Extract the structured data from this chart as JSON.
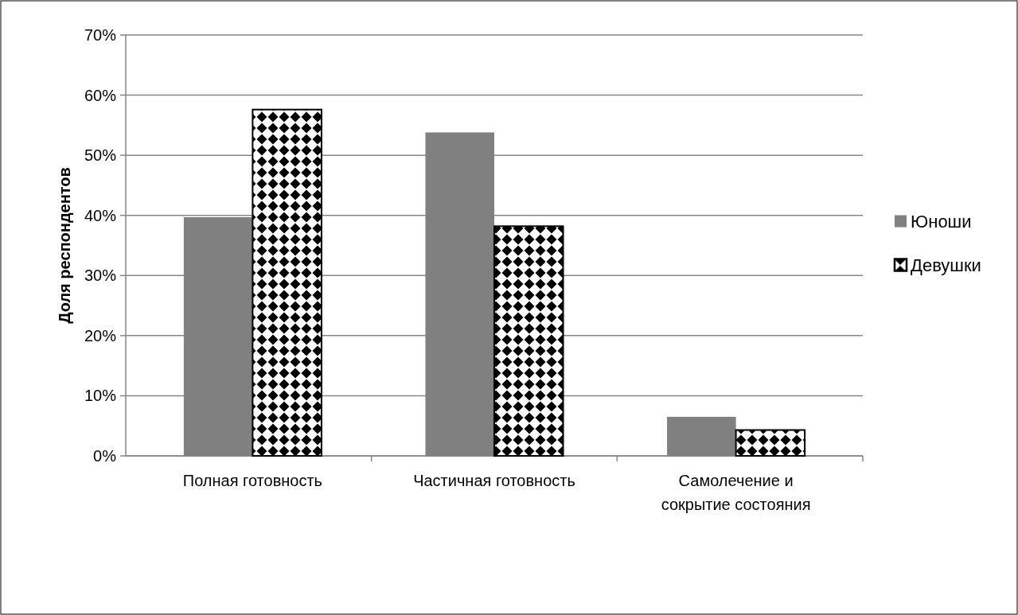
{
  "chart_data": {
    "type": "bar",
    "ylabel": "Доля респондентов",
    "categories": [
      "Полная готовность",
      "Частичная готовность",
      "Самолечение и сокрытие состояния"
    ],
    "series": [
      {
        "name": "Юноши",
        "color": "#808080",
        "values": [
          39.7,
          53.8,
          6.5
        ]
      },
      {
        "name": "Девушки",
        "color": "#000000",
        "values": [
          57.6,
          38.2,
          4.3
        ]
      }
    ],
    "ylim": [
      0,
      70
    ],
    "yticks": [
      {
        "value": 0,
        "label": "0%"
      },
      {
        "value": 10,
        "label": "10%"
      },
      {
        "value": 20,
        "label": "20%"
      },
      {
        "value": 30,
        "label": "30%"
      },
      {
        "value": 40,
        "label": "40%"
      },
      {
        "value": 50,
        "label": "50%"
      },
      {
        "value": 60,
        "label": "60%"
      },
      {
        "value": 70,
        "label": "70%"
      }
    ],
    "grid": "y",
    "legend": "right"
  }
}
